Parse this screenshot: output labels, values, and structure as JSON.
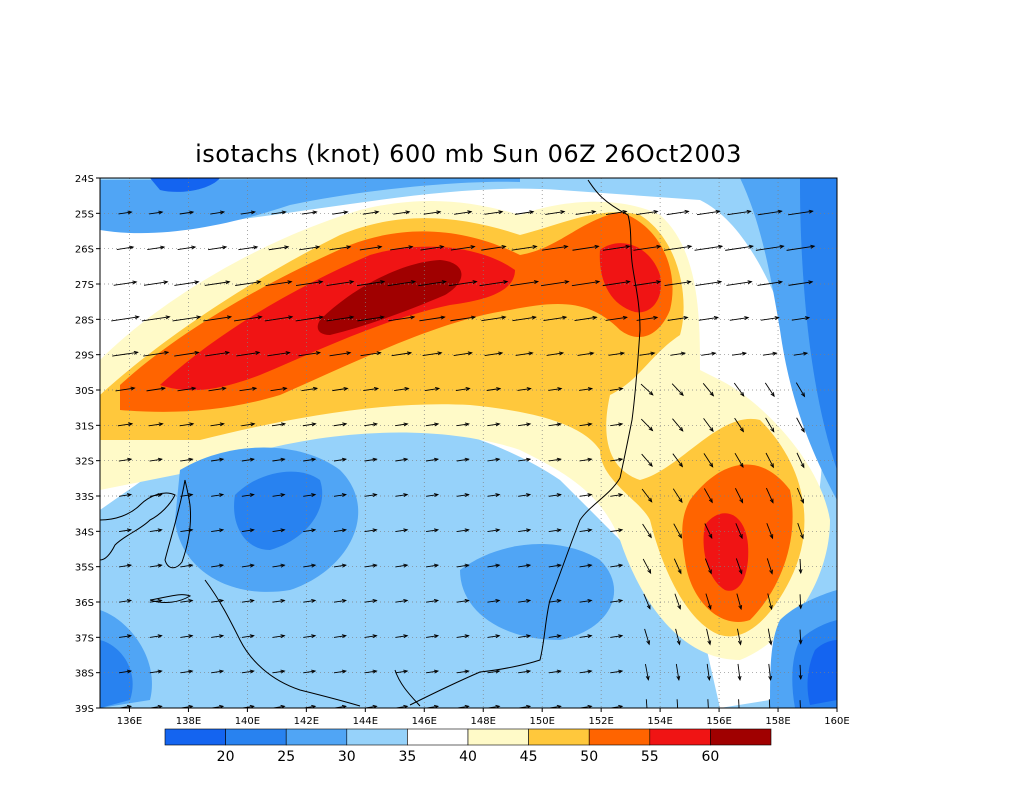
{
  "title": "isotachs (knot) 600 mb Sun 06Z 26Oct2003",
  "map": {
    "lon_labels": [
      "136E",
      "138E",
      "140E",
      "142E",
      "144E",
      "146E",
      "148E",
      "150E",
      "152E",
      "154E",
      "156E",
      "158E",
      "160E"
    ],
    "lat_labels": [
      "24S",
      "25S",
      "26S",
      "27S",
      "28S",
      "29S",
      "30S",
      "31S",
      "32S",
      "33S",
      "34S",
      "35S",
      "36S",
      "37S",
      "38S",
      "39S"
    ],
    "lon_range": [
      135,
      160
    ],
    "lat_range": [
      -39,
      -24
    ]
  },
  "colorbar": {
    "labels": [
      "20",
      "25",
      "30",
      "35",
      "40",
      "45",
      "50",
      "55",
      "60"
    ],
    "colors": [
      "#1464f0",
      "#2882f0",
      "#50a5f5",
      "#96d2fa",
      "#ffffff",
      "#fffac8",
      "#ffc83c",
      "#ff6400",
      "#f01414",
      "#a00000"
    ]
  },
  "colors": {
    "background": "#ffffff",
    "coastline": "#000000",
    "grid": "#808080",
    "arrow": "#000000"
  }
}
